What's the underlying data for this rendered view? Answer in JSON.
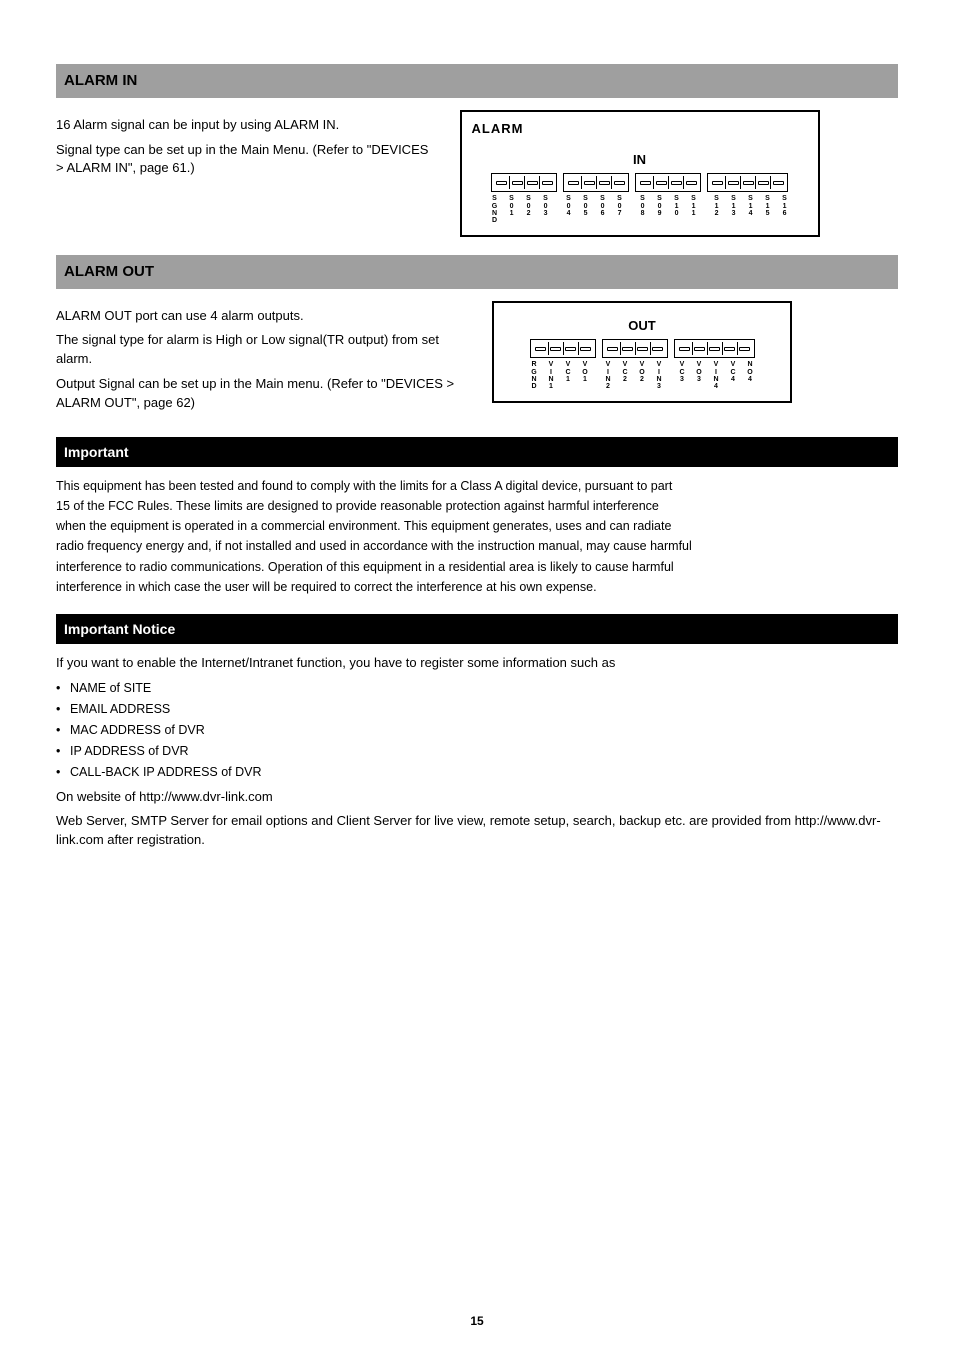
{
  "sections": {
    "alarm_in": {
      "heading": "ALARM IN",
      "text1": "16 Alarm signal can be input by using ALARM IN.",
      "text2": "Signal type can be set up in the Main Menu. (Refer to \"DEVICES > ALARM IN\", page 61.)",
      "figure": {
        "box_title": "ALARM",
        "section_label": "IN",
        "groups": [
          [
            "S\nG\nN\nD",
            "S\n0\n1",
            "S\n0\n2",
            "S\n0\n3"
          ],
          [
            "S\n0\n4",
            "S\n0\n5",
            "S\n0\n6",
            "S\n0\n7"
          ],
          [
            "S\n0\n8",
            "S\n0\n9",
            "S\n1\n0",
            "S\n1\n1"
          ],
          [
            "S\n1\n2",
            "S\n1\n3",
            "S\n1\n4",
            "S\n1\n5",
            "S\n1\n6"
          ]
        ]
      }
    },
    "alarm_out": {
      "heading": "ALARM OUT",
      "text1": "ALARM OUT port can use 4 alarm outputs.",
      "text2": "The signal type for alarm is High or Low signal(TR output) from set alarm.",
      "text3": "Output Signal can be set up in the Main menu. (Refer to \"DEVICES > ALARM OUT\", page 62)",
      "figure": {
        "section_label": "OUT",
        "groups": [
          [
            "R\nG\nN\nD",
            "V\nI\nN\n1",
            "V\nC\n1",
            "V\nO\n1"
          ],
          [
            "V\nI\nN\n2",
            "V\nC\n2",
            "V\nO\n2",
            "V\nI\nN\n3"
          ],
          [
            "V\nC\n3",
            "V\nO\n3",
            "V\nI\nN\n4",
            "V\nC\n4",
            "N\nO\n4"
          ]
        ]
      }
    }
  },
  "important1": {
    "heading": "Important",
    "lines": [
      "This equipment has been tested and found to comply with the limits for a Class A digital device, pursuant to part",
      "15 of the FCC Rules. These limits are designed to provide reasonable protection against harmful interference",
      "when the equipment is operated in a commercial environment. This equipment generates, uses and can radiate",
      "radio frequency energy and, if not installed and used in accordance with the instruction manual, may cause harmful",
      "interference to radio communications. Operation of this equipment in a residential area is likely to cause harmful",
      "interference in which case the user will be required to correct the interference at his own expense."
    ]
  },
  "important2": {
    "heading": "Important Notice",
    "lead": "If you want to enable the Internet/Intranet function, you have to register some information such as",
    "bullets": [
      "NAME of SITE",
      "EMAIL ADDRESS",
      "MAC ADDRESS of DVR",
      "IP ADDRESS of DVR",
      "CALL-BACK IP ADDRESS of DVR"
    ],
    "tail1": "On website of http://www.dvr-link.com",
    "tail2": "Web Server, SMTP Server for email options and Client Server for live view, remote setup, search, backup etc. are provided from http://www.dvr-link.com after registration."
  },
  "footer": "15"
}
